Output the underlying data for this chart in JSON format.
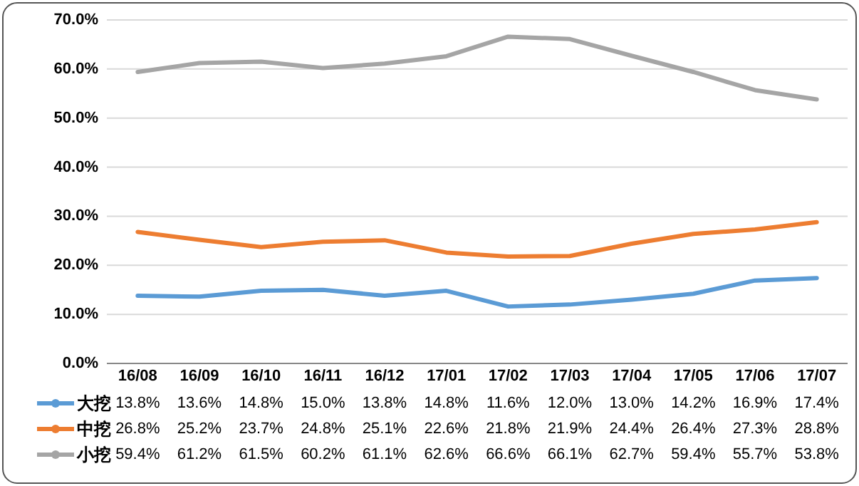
{
  "chart_data": {
    "type": "line",
    "categories": [
      "16/08",
      "16/09",
      "16/10",
      "16/11",
      "16/12",
      "17/01",
      "17/02",
      "17/03",
      "17/04",
      "17/05",
      "17/06",
      "17/07"
    ],
    "series": [
      {
        "name": "大挖",
        "color": "#5b9bd5",
        "values": [
          13.8,
          13.6,
          14.8,
          15.0,
          13.8,
          14.8,
          11.6,
          12.0,
          13.0,
          14.2,
          16.9,
          17.4
        ],
        "value_labels": [
          "13.8%",
          "13.6%",
          "14.8%",
          "15.0%",
          "13.8%",
          "14.8%",
          "11.6%",
          "12.0%",
          "13.0%",
          "14.2%",
          "16.9%",
          "17.4%"
        ]
      },
      {
        "name": "中挖",
        "color": "#ed7d31",
        "values": [
          26.8,
          25.2,
          23.7,
          24.8,
          25.1,
          22.6,
          21.8,
          21.9,
          24.4,
          26.4,
          27.3,
          28.8
        ],
        "value_labels": [
          "26.8%",
          "25.2%",
          "23.7%",
          "24.8%",
          "25.1%",
          "22.6%",
          "21.8%",
          "21.9%",
          "24.4%",
          "26.4%",
          "27.3%",
          "28.8%"
        ]
      },
      {
        "name": "小挖",
        "color": "#a5a5a5",
        "values": [
          59.4,
          61.2,
          61.5,
          60.2,
          61.1,
          62.6,
          66.6,
          66.1,
          62.7,
          59.4,
          55.7,
          53.8
        ],
        "value_labels": [
          "59.4%",
          "61.2%",
          "61.5%",
          "60.2%",
          "61.1%",
          "62.6%",
          "66.6%",
          "66.1%",
          "62.7%",
          "59.4%",
          "55.7%",
          "53.8%"
        ]
      }
    ],
    "ylim": [
      0,
      70
    ],
    "yticks": [
      {
        "value": 0,
        "label": "0.0%"
      },
      {
        "value": 10,
        "label": "10.0%"
      },
      {
        "value": 20,
        "label": "20.0%"
      },
      {
        "value": 30,
        "label": "30.0%"
      },
      {
        "value": 40,
        "label": "40.0%"
      },
      {
        "value": 50,
        "label": "50.0%"
      },
      {
        "value": 60,
        "label": "60.0%"
      },
      {
        "value": 70,
        "label": "70.0%"
      }
    ],
    "grid": "y",
    "legend": "bottom",
    "line_style": "solid"
  }
}
